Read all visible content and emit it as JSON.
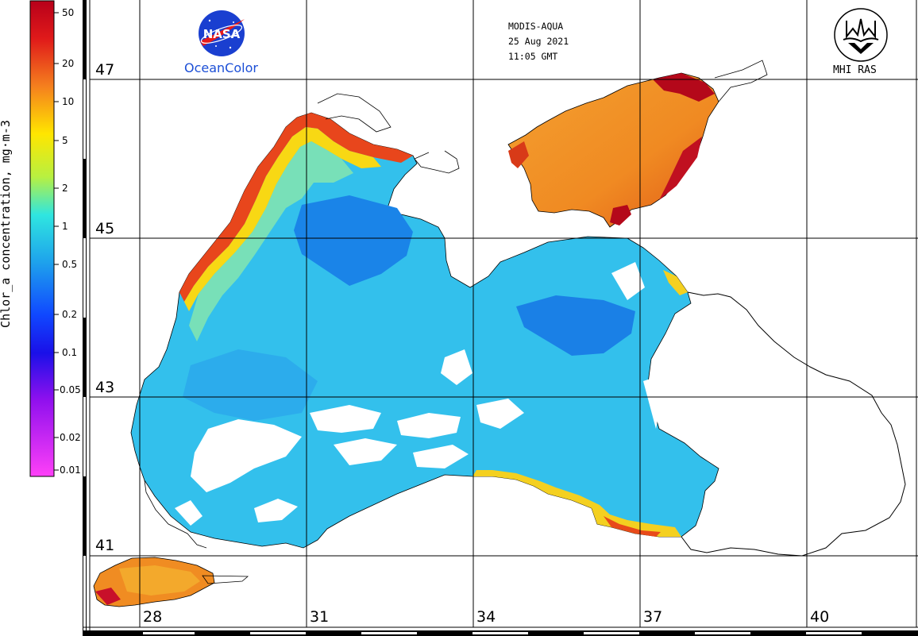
{
  "header": {
    "sensor": "MODIS-AQUA",
    "date": "25 Aug 2021",
    "time": "11:05 GMT"
  },
  "logos": {
    "nasa_text": "NASA",
    "oceancolor_text": "OceanColor",
    "mhi_text": "MHI RAS"
  },
  "colorbar": {
    "title": "Chlor_a concentration, mg·m-3",
    "ticks": [
      "50",
      "20",
      "10",
      "5",
      "2",
      "1",
      "0.5",
      "0.2",
      "0.1",
      "0.05",
      "0.02",
      "0.01"
    ],
    "scale": "log"
  },
  "grid": {
    "latitudes": [
      "47",
      "45",
      "43",
      "41"
    ],
    "longitudes": [
      "28",
      "31",
      "34",
      "37",
      "40"
    ]
  },
  "colors": {
    "high": "#c8001a",
    "mid_high": "#f07a1e",
    "mid": "#ffe600",
    "low_mid": "#2fe0e8",
    "low": "#1e8fe6",
    "very_low": "#1030ff",
    "min": "#ff50f0",
    "oceancolor_blue": "#1c4fd6"
  }
}
